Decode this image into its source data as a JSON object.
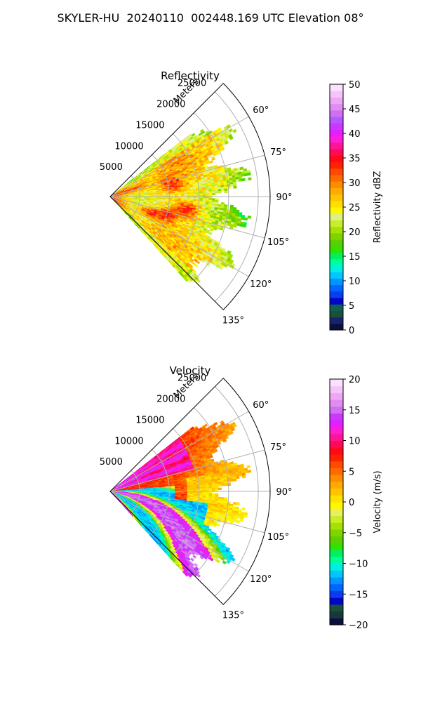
{
  "suptitle": "SKYLER-HU  20240110  002448.169 UTC Elevation 08°",
  "chart_data": [
    {
      "type": "heatmap",
      "subtype": "polar-sector (PPI)",
      "title": "Reflectivity",
      "radial_axis_label": "Meters",
      "radial_range": [
        0,
        27000
      ],
      "radial_ticks": [
        5000,
        10000,
        15000,
        20000,
        25000
      ],
      "radial_tick_labels": [
        "5000",
        "10000",
        "15000",
        "20000",
        "25000"
      ],
      "azimuth_range_deg": [
        45,
        135
      ],
      "azimuth_ticks_deg": [
        60,
        75,
        90,
        105,
        120,
        135
      ],
      "azimuth_tick_labels": [
        "60°",
        "75°",
        "90°",
        "105°",
        "120°",
        "135°"
      ],
      "grid": true,
      "data_extent": {
        "azimuth_deg": [
          52,
          138
        ],
        "max_range_m": 24000
      },
      "field_summary": "Mostly 20–30 dBZ (yellow/orange) with green 15–20 dBZ edges and scattered red 35–38 dBZ cores; strongest echoes near the radar and near 95–110° at 10–15 km.",
      "colorbar": {
        "label": "Reflectivity dBZ",
        "range": [
          0,
          50
        ],
        "ticks": [
          0,
          5,
          10,
          15,
          20,
          25,
          30,
          35,
          40,
          45,
          50
        ],
        "tick_labels": [
          "0",
          "5",
          "10",
          "15",
          "20",
          "25",
          "30",
          "35",
          "40",
          "45",
          "50"
        ],
        "colors": [
          "#0c0f3d",
          "#16246b",
          "#1a4f3c",
          "#105f50",
          "#0005c8",
          "#0a3df0",
          "#0066ff",
          "#0095ff",
          "#00c8ff",
          "#00f0e0",
          "#00ff9c",
          "#00f060",
          "#33e000",
          "#5ad000",
          "#7fd400",
          "#a8e000",
          "#c6ee2a",
          "#e0f080",
          "#fff700",
          "#ffdf00",
          "#ffc400",
          "#ffaa00",
          "#ff8c00",
          "#ff6a00",
          "#ff4a00",
          "#ff2200",
          "#ff0a1a",
          "#ff0a55",
          "#ff1496",
          "#ff1ed2",
          "#e51eff",
          "#c838ff",
          "#b658ff",
          "#d070f0",
          "#e08cf0",
          "#eca8f4",
          "#f4c4fa",
          "#fbe0ff"
        ]
      }
    },
    {
      "type": "heatmap",
      "subtype": "polar-sector (PPI)",
      "title": "Velocity",
      "radial_axis_label": "Meters",
      "radial_range": [
        0,
        27000
      ],
      "radial_ticks": [
        5000,
        10000,
        15000,
        20000,
        25000
      ],
      "radial_tick_labels": [
        "5000",
        "10000",
        "15000",
        "20000",
        "25000"
      ],
      "azimuth_range_deg": [
        45,
        135
      ],
      "azimuth_ticks_deg": [
        60,
        75,
        90,
        105,
        120,
        135
      ],
      "azimuth_tick_labels": [
        "60°",
        "75°",
        "90°",
        "105°",
        "120°",
        "135°"
      ],
      "grid": true,
      "data_extent": {
        "azimuth_deg": [
          52,
          138
        ],
        "max_range_m": 24000
      },
      "field_summary": "Banded velocity pattern: +5 to +12 m/s (orange/red) in the north and far field, 0 to +3 m/s (yellow) in the east, −5 to −12 m/s (green/cyan) bands in the south, with magenta +15 m/s aliasing bands along the red/cyan boundaries.",
      "colorbar": {
        "label": "Velocity (m/s)",
        "range": [
          -20,
          20
        ],
        "ticks": [
          -20,
          -15,
          -10,
          -5,
          0,
          5,
          10,
          15,
          20
        ],
        "tick_labels": [
          "−20",
          "−15",
          "−10",
          "−5",
          "0",
          "5",
          "10",
          "15",
          "20"
        ],
        "colors": [
          "#0c0f3d",
          "#163a3a",
          "#1a4f3c",
          "#0005c8",
          "#0a3df0",
          "#0066ff",
          "#0095ff",
          "#00c8ff",
          "#00f0e0",
          "#00ff9c",
          "#00f060",
          "#33e000",
          "#5ad000",
          "#7fd400",
          "#a8e000",
          "#c6ee2a",
          "#e6f060",
          "#fff700",
          "#ffe000",
          "#ffc400",
          "#ffaa00",
          "#ff8c00",
          "#ff6a00",
          "#ff4a00",
          "#ff2200",
          "#ff0a1a",
          "#ff0a55",
          "#ff1496",
          "#ff1ed2",
          "#e51eff",
          "#c838ff",
          "#d070f0",
          "#e08cf0",
          "#eca8f4",
          "#f4c4fa",
          "#fbe0ff"
        ]
      }
    }
  ]
}
